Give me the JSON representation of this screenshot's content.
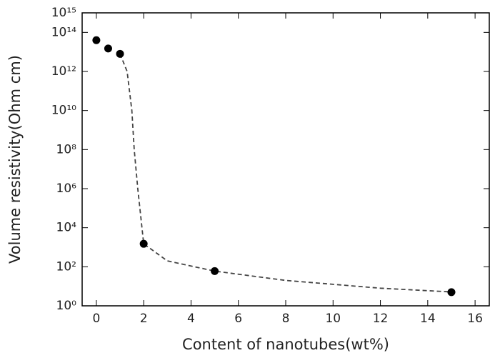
{
  "chart_data": {
    "type": "scatter",
    "x_label": "Content of nanotubes(wt%)",
    "y_label": "Volume resistivity(Ohm cm)",
    "log_y": true,
    "x": [
      0,
      0.5,
      1,
      2,
      5,
      15
    ],
    "values": [
      40000000000000,
      15000000000000,
      8000000000000,
      1500,
      60,
      5
    ],
    "color": "#000000",
    "curve": {
      "x": [
        1,
        1.3,
        1.5,
        1.6,
        1.75,
        2,
        3,
        5,
        8,
        12,
        15.2
      ],
      "y": [
        8000000000000,
        1000000000000,
        10000000000,
        100000000,
        1000000,
        1500,
        200,
        60,
        20,
        8,
        5
      ]
    },
    "xlim": [
      -0.6,
      16.6
    ],
    "ylim": [
      1,
      1000000000000000
    ],
    "xticks": [
      0,
      2,
      4,
      6,
      8,
      10,
      12,
      14,
      16
    ],
    "yticks": [
      {
        "value": 1,
        "label": "10⁰"
      },
      {
        "value": 100,
        "label": "10²"
      },
      {
        "value": 10000,
        "label": "10⁴"
      },
      {
        "value": 1000000,
        "label": "10⁶"
      },
      {
        "value": 100000000,
        "label": "10⁸"
      },
      {
        "value": 10000000000,
        "label": "10¹⁰"
      },
      {
        "value": 1000000000000,
        "label": "10¹²"
      },
      {
        "value": 100000000000000,
        "label": "10¹⁴"
      },
      {
        "value": 1000000000000000,
        "label": "10¹⁵"
      }
    ]
  }
}
